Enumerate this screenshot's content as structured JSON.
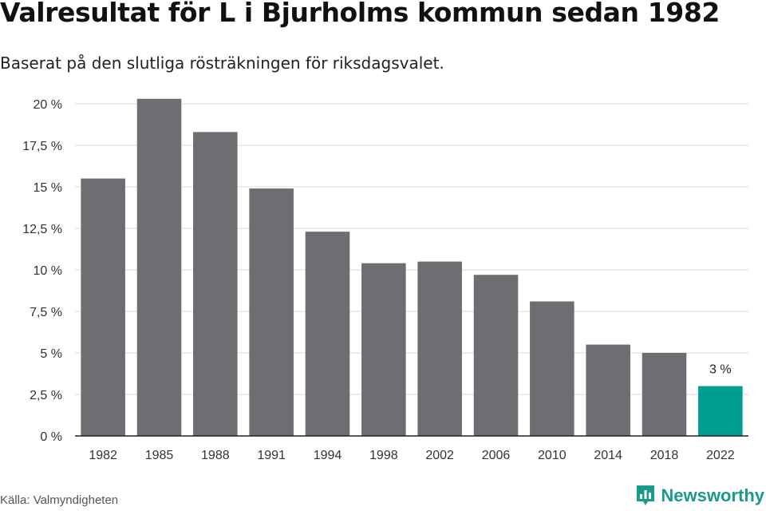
{
  "title": "Valresultat för L i Bjurholms kommun sedan 1982",
  "subtitle": "Baserat på den slutliga rösträkningen för riksdagsvalet.",
  "source": "Källa: Valmyndigheten",
  "brand": {
    "name": "Newsworthy",
    "icon": "newsworthy-logo-icon",
    "color": "#1b9a8a"
  },
  "colors": {
    "bar": "#6e6d72",
    "highlight": "#009e90",
    "grid": "#d9d9d9",
    "axis": "#222222"
  },
  "chart_data": {
    "type": "bar",
    "title": "Valresultat för L i Bjurholms kommun sedan 1982",
    "xlabel": "",
    "ylabel": "",
    "categories": [
      "1982",
      "1985",
      "1988",
      "1991",
      "1994",
      "1998",
      "2002",
      "2006",
      "2010",
      "2014",
      "2018",
      "2022"
    ],
    "values": [
      15.5,
      20.3,
      18.3,
      14.9,
      12.3,
      10.4,
      10.5,
      9.7,
      8.1,
      5.5,
      5.0,
      3.0
    ],
    "highlight_index": 11,
    "annotation": {
      "index": 11,
      "text": "3 %"
    },
    "ylim": [
      0,
      20
    ],
    "yticks": [
      0,
      2.5,
      5,
      7.5,
      10,
      12.5,
      15,
      17.5,
      20
    ],
    "ytick_labels": [
      "0 %",
      "2,5 %",
      "5 %",
      "7,5 %",
      "10 %",
      "12,5 %",
      "15 %",
      "17,5 %",
      "20 %"
    ],
    "grid": true
  }
}
